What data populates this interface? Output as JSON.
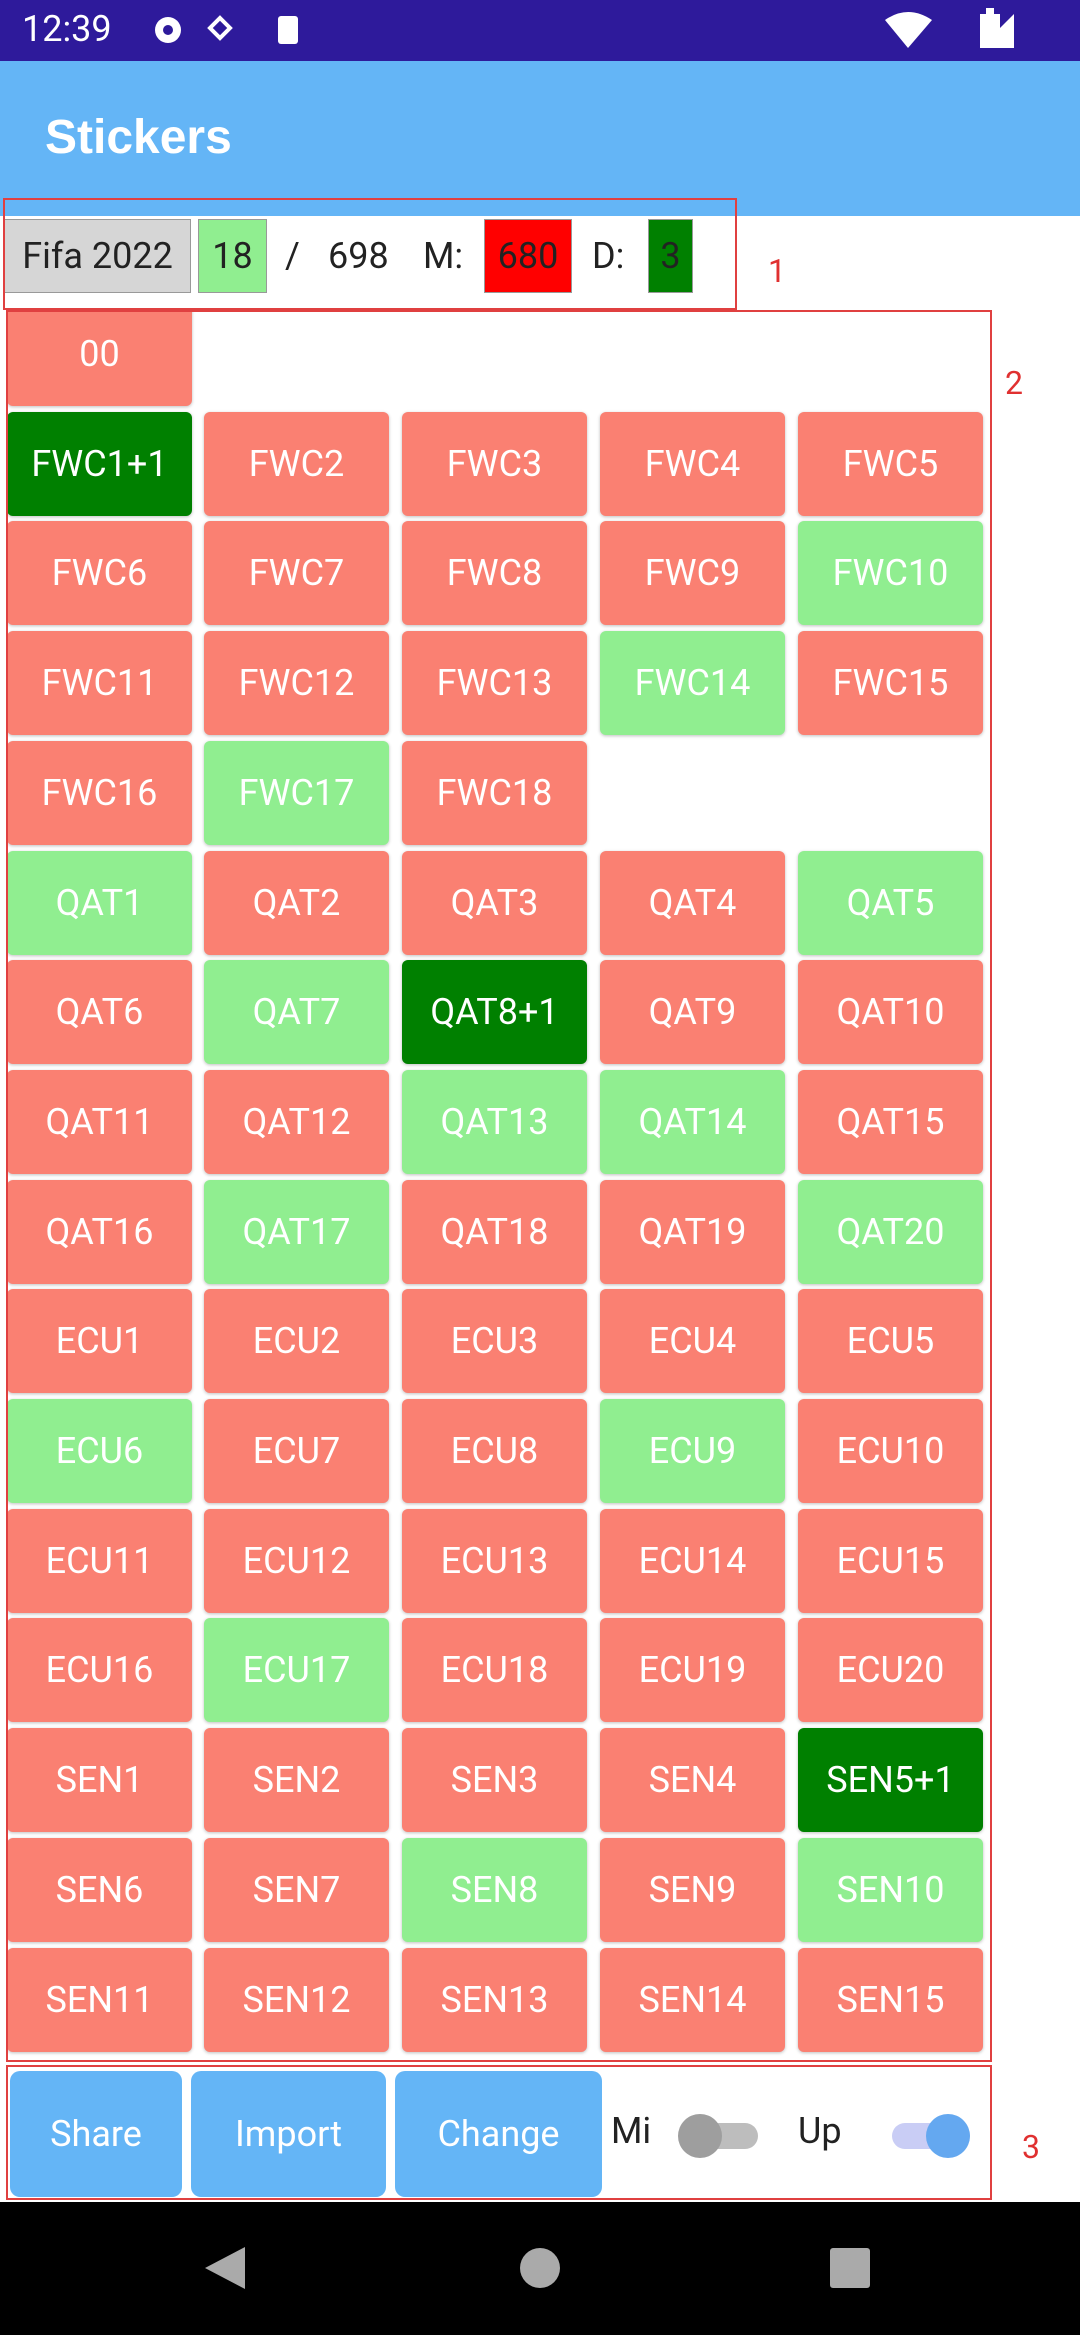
{
  "status_bar": {
    "time": "12:39"
  },
  "app_bar": {
    "title": "Stickers"
  },
  "header": {
    "album": "Fifa 2022",
    "owned": "18",
    "separator": "/",
    "total": "698",
    "missing_label": "M:",
    "missing": "680",
    "duplicates_label": "D:",
    "duplicates": "3"
  },
  "sections": [
    {
      "stickers": [
        {
          "label": "00",
          "color": "#fa8072"
        }
      ]
    },
    {
      "stickers": [
        {
          "label": "FWC1+1",
          "color": "#008000"
        },
        {
          "label": "FWC2",
          "color": "#fa8072"
        },
        {
          "label": "FWC3",
          "color": "#fa8072"
        },
        {
          "label": "FWC4",
          "color": "#fa8072"
        },
        {
          "label": "FWC5",
          "color": "#fa8072"
        },
        {
          "label": "FWC6",
          "color": "#fa8072"
        },
        {
          "label": "FWC7",
          "color": "#fa8072"
        },
        {
          "label": "FWC8",
          "color": "#fa8072"
        },
        {
          "label": "FWC9",
          "color": "#fa8072"
        },
        {
          "label": "FWC10",
          "color": "#90ee90"
        },
        {
          "label": "FWC11",
          "color": "#fa8072"
        },
        {
          "label": "FWC12",
          "color": "#fa8072"
        },
        {
          "label": "FWC13",
          "color": "#fa8072"
        },
        {
          "label": "FWC14",
          "color": "#90ee90"
        },
        {
          "label": "FWC15",
          "color": "#fa8072"
        },
        {
          "label": "FWC16",
          "color": "#fa8072"
        },
        {
          "label": "FWC17",
          "color": "#90ee90"
        },
        {
          "label": "FWC18",
          "color": "#fa8072"
        }
      ]
    },
    {
      "stickers": [
        {
          "label": "QAT1",
          "color": "#90ee90"
        },
        {
          "label": "QAT2",
          "color": "#fa8072"
        },
        {
          "label": "QAT3",
          "color": "#fa8072"
        },
        {
          "label": "QAT4",
          "color": "#fa8072"
        },
        {
          "label": "QAT5",
          "color": "#90ee90"
        },
        {
          "label": "QAT6",
          "color": "#fa8072"
        },
        {
          "label": "QAT7",
          "color": "#90ee90"
        },
        {
          "label": "QAT8+1",
          "color": "#008000"
        },
        {
          "label": "QAT9",
          "color": "#fa8072"
        },
        {
          "label": "QAT10",
          "color": "#fa8072"
        },
        {
          "label": "QAT11",
          "color": "#fa8072"
        },
        {
          "label": "QAT12",
          "color": "#fa8072"
        },
        {
          "label": "QAT13",
          "color": "#90ee90"
        },
        {
          "label": "QAT14",
          "color": "#90ee90"
        },
        {
          "label": "QAT15",
          "color": "#fa8072"
        },
        {
          "label": "QAT16",
          "color": "#fa8072"
        },
        {
          "label": "QAT17",
          "color": "#90ee90"
        },
        {
          "label": "QAT18",
          "color": "#fa8072"
        },
        {
          "label": "QAT19",
          "color": "#fa8072"
        },
        {
          "label": "QAT20",
          "color": "#90ee90"
        }
      ]
    },
    {
      "stickers": [
        {
          "label": "ECU1",
          "color": "#fa8072"
        },
        {
          "label": "ECU2",
          "color": "#fa8072"
        },
        {
          "label": "ECU3",
          "color": "#fa8072"
        },
        {
          "label": "ECU4",
          "color": "#fa8072"
        },
        {
          "label": "ECU5",
          "color": "#fa8072"
        },
        {
          "label": "ECU6",
          "color": "#90ee90"
        },
        {
          "label": "ECU7",
          "color": "#fa8072"
        },
        {
          "label": "ECU8",
          "color": "#fa8072"
        },
        {
          "label": "ECU9",
          "color": "#90ee90"
        },
        {
          "label": "ECU10",
          "color": "#fa8072"
        },
        {
          "label": "ECU11",
          "color": "#fa8072"
        },
        {
          "label": "ECU12",
          "color": "#fa8072"
        },
        {
          "label": "ECU13",
          "color": "#fa8072"
        },
        {
          "label": "ECU14",
          "color": "#fa8072"
        },
        {
          "label": "ECU15",
          "color": "#fa8072"
        },
        {
          "label": "ECU16",
          "color": "#fa8072"
        },
        {
          "label": "ECU17",
          "color": "#90ee90"
        },
        {
          "label": "ECU18",
          "color": "#fa8072"
        },
        {
          "label": "ECU19",
          "color": "#fa8072"
        },
        {
          "label": "ECU20",
          "color": "#fa8072"
        }
      ]
    },
    {
      "stickers": [
        {
          "label": "SEN1",
          "color": "#fa8072"
        },
        {
          "label": "SEN2",
          "color": "#fa8072"
        },
        {
          "label": "SEN3",
          "color": "#fa8072"
        },
        {
          "label": "SEN4",
          "color": "#fa8072"
        },
        {
          "label": "SEN5+1",
          "color": "#008000"
        },
        {
          "label": "SEN6",
          "color": "#fa8072"
        },
        {
          "label": "SEN7",
          "color": "#fa8072"
        },
        {
          "label": "SEN8",
          "color": "#90ee90"
        },
        {
          "label": "SEN9",
          "color": "#fa8072"
        },
        {
          "label": "SEN10",
          "color": "#90ee90"
        },
        {
          "label": "SEN11",
          "color": "#fa8072"
        },
        {
          "label": "SEN12",
          "color": "#fa8072"
        },
        {
          "label": "SEN13",
          "color": "#fa8072"
        },
        {
          "label": "SEN14",
          "color": "#fa8072"
        },
        {
          "label": "SEN15",
          "color": "#fa8072"
        }
      ]
    }
  ],
  "footer": {
    "buttons": [
      "Share",
      "Import",
      "Change"
    ],
    "toggles": [
      {
        "label": "Mi",
        "checked": false
      },
      {
        "label": "Up",
        "checked": true
      }
    ]
  },
  "annotations": [
    "1",
    "2",
    "3"
  ]
}
